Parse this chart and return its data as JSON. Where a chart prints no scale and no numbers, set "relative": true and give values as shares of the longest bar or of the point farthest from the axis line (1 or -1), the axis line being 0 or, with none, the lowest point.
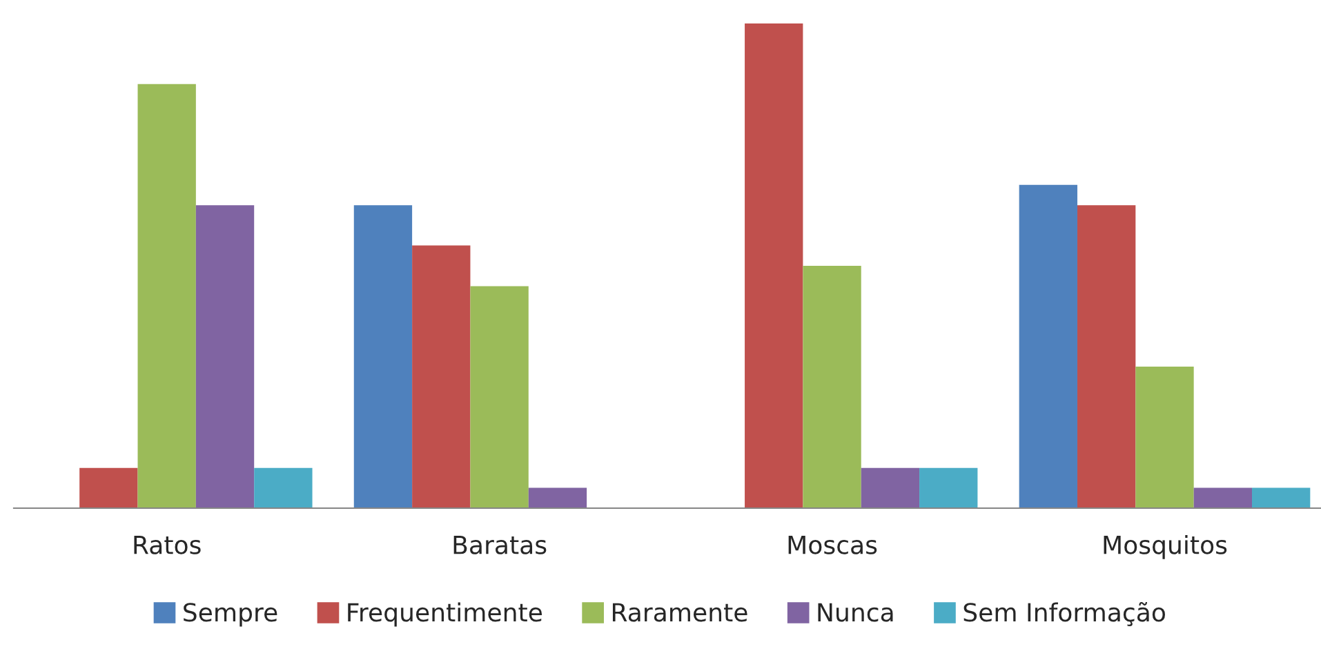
{
  "chart_data": {
    "type": "bar",
    "relative": true,
    "categories": [
      "Ratos",
      "Baratas",
      "Moscas",
      "Mosquitos"
    ],
    "series": [
      {
        "name": "Sempre",
        "color": "#4f81bd",
        "values": [
          0,
          0.625,
          0,
          0.667
        ]
      },
      {
        "name": "Frequentimente",
        "color": "#c0504d",
        "values": [
          0.083,
          0.542,
          1,
          0.625
        ]
      },
      {
        "name": "Raramente",
        "color": "#9bbb59",
        "values": [
          0.875,
          0.458,
          0.5,
          0.292
        ]
      },
      {
        "name": "Nunca",
        "color": "#8064a2",
        "values": [
          0.625,
          0.042,
          0.083,
          0.042
        ]
      },
      {
        "name": "Sem Informação",
        "color": "#4bacc6",
        "values": [
          0.083,
          0,
          0.083,
          0.042
        ]
      }
    ],
    "legend": "bottom",
    "grid": false
  }
}
